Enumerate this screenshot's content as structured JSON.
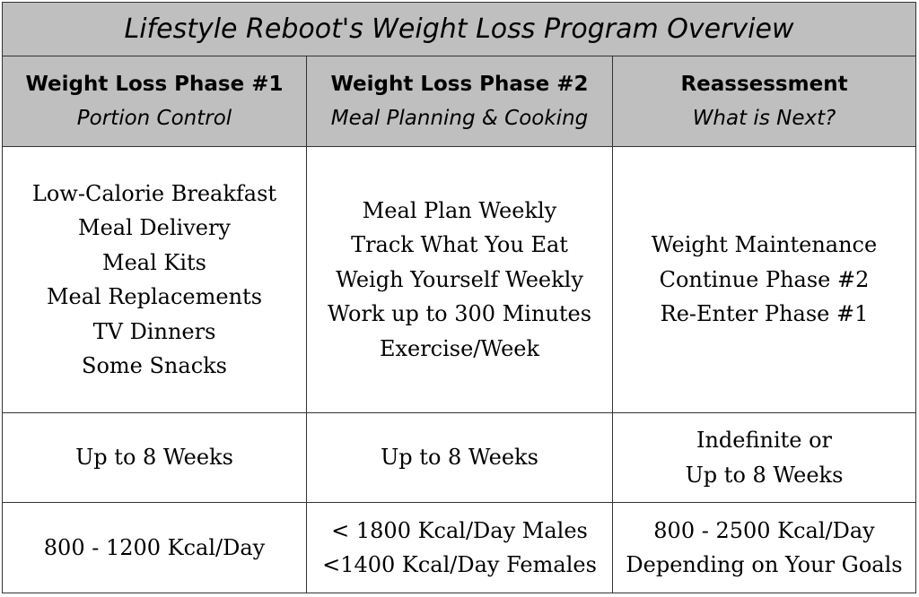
{
  "title": "Lifestyle Reboot's Weight Loss Program Overview",
  "headers": [
    {
      "main": "Weight Loss Phase #1",
      "sub": "Portion Control"
    },
    {
      "main": "Weight Loss Phase #2",
      "sub": "Meal Planning & Cooking"
    },
    {
      "main": "Reassessment",
      "sub": "What is Next?"
    }
  ],
  "activities": [
    [
      "Low-Calorie Breakfast",
      "Meal Delivery",
      "Meal Kits",
      "Meal Replacements",
      "TV Dinners",
      "Some Snacks"
    ],
    [
      "Meal Plan Weekly",
      "Track What You Eat",
      "Weigh Yourself Weekly",
      "Work up to 300 Minutes",
      "Exercise/Week"
    ],
    [
      "Weight Maintenance",
      "Continue Phase #2",
      "Re-Enter Phase #1"
    ]
  ],
  "durations": [
    [
      "Up to 8 Weeks"
    ],
    [
      "Up to 8 Weeks"
    ],
    [
      "Indefinite or",
      "Up to 8 Weeks"
    ]
  ],
  "calories": [
    [
      "800 - 1200 Kcal/Day"
    ],
    [
      "< 1800 Kcal/Day Males",
      "<1400 Kcal/Day Females"
    ],
    [
      "800 - 2500 Kcal/Day",
      "Depending on Your Goals"
    ]
  ],
  "colors": {
    "header_bg": "#bfbfbf",
    "border": "#333333",
    "body_bg": "#ffffff"
  }
}
